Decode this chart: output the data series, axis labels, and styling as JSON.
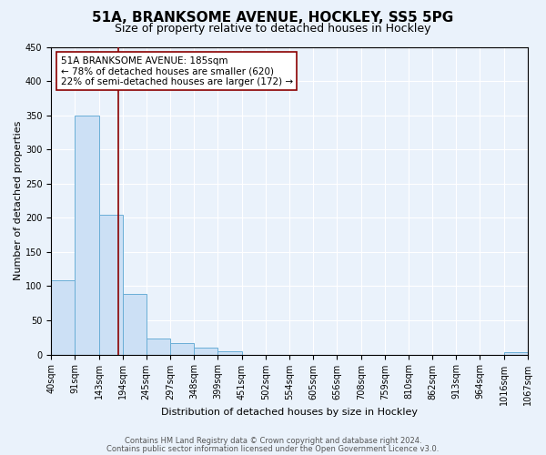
{
  "title": "51A, BRANKSOME AVENUE, HOCKLEY, SS5 5PG",
  "subtitle": "Size of property relative to detached houses in Hockley",
  "xlabel": "Distribution of detached houses by size in Hockley",
  "ylabel": "Number of detached properties",
  "bin_edges": [
    40,
    91,
    143,
    194,
    245,
    297,
    348,
    399,
    451,
    502,
    554,
    605,
    656,
    708,
    759,
    810,
    862,
    913,
    964,
    1016,
    1067
  ],
  "bin_labels": [
    "40sqm",
    "91sqm",
    "143sqm",
    "194sqm",
    "245sqm",
    "297sqm",
    "348sqm",
    "399sqm",
    "451sqm",
    "502sqm",
    "554sqm",
    "605sqm",
    "656sqm",
    "708sqm",
    "759sqm",
    "810sqm",
    "862sqm",
    "913sqm",
    "964sqm",
    "1016sqm",
    "1067sqm"
  ],
  "counts": [
    108,
    350,
    204,
    89,
    24,
    17,
    10,
    5,
    0,
    0,
    0,
    0,
    0,
    0,
    0,
    0,
    0,
    0,
    0,
    4
  ],
  "bar_color": "#cce0f5",
  "bar_edge_color": "#6aaed6",
  "property_size": 185,
  "vline_color": "#8b0000",
  "annotation_line1": "51A BRANKSOME AVENUE: 185sqm",
  "annotation_line2": "← 78% of detached houses are smaller (620)",
  "annotation_line3": "22% of semi-detached houses are larger (172) →",
  "annotation_box_color": "#ffffff",
  "annotation_box_edge": "#8b0000",
  "ylim": [
    0,
    450
  ],
  "yticks": [
    0,
    50,
    100,
    150,
    200,
    250,
    300,
    350,
    400,
    450
  ],
  "background_color": "#eaf2fb",
  "footer_line1": "Contains HM Land Registry data © Crown copyright and database right 2024.",
  "footer_line2": "Contains public sector information licensed under the Open Government Licence v3.0.",
  "title_fontsize": 11,
  "subtitle_fontsize": 9,
  "axis_label_fontsize": 8,
  "tick_fontsize": 7,
  "annotation_fontsize": 7.5
}
